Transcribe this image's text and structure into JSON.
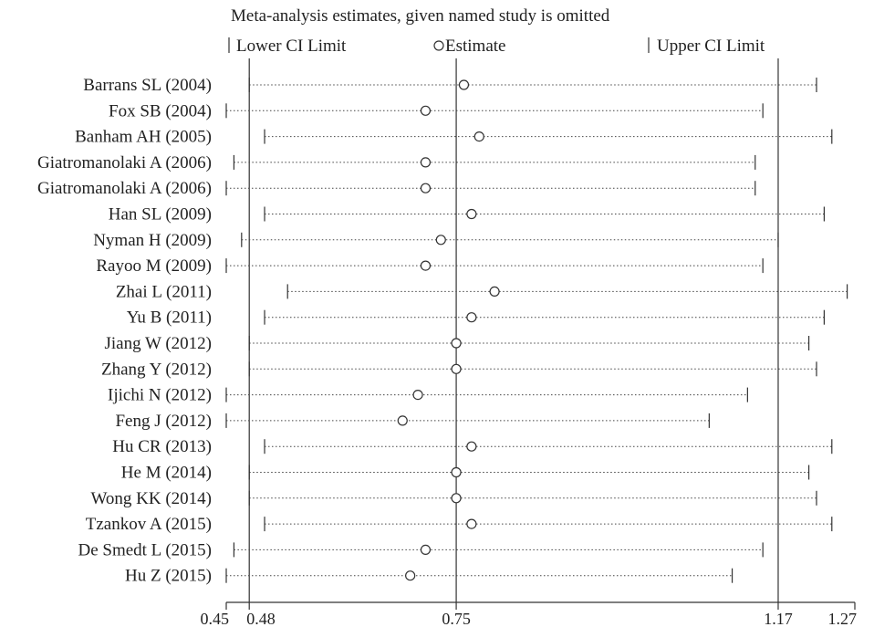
{
  "chart_data": {
    "type": "forest",
    "title": "Meta-analysis estimates, given named study is omitted",
    "legend": {
      "lower": "Lower CI Limit",
      "estimate": "Estimate",
      "upper": "Upper CI Limit"
    },
    "xlim": [
      0.45,
      1.27
    ],
    "reference_lines": [
      0.48,
      0.75,
      1.17
    ],
    "xticks": [
      {
        "value": 0.45,
        "label": "0.45"
      },
      {
        "value": 0.48,
        "label": "0.48"
      },
      {
        "value": 0.75,
        "label": "0.75"
      },
      {
        "value": 1.17,
        "label": "1.17"
      },
      {
        "value": 1.27,
        "label": "1.27"
      }
    ],
    "studies": [
      {
        "name": "Barrans SL (2004)",
        "lower": 0.48,
        "estimate": 0.76,
        "upper": 1.22
      },
      {
        "name": "Fox SB (2004)",
        "lower": 0.45,
        "estimate": 0.71,
        "upper": 1.15
      },
      {
        "name": "Banham AH (2005)",
        "lower": 0.5,
        "estimate": 0.78,
        "upper": 1.24
      },
      {
        "name": "Giatromanolaki A (2006)",
        "lower": 0.46,
        "estimate": 0.71,
        "upper": 1.14
      },
      {
        "name": "Giatromanolaki A (2006)",
        "lower": 0.45,
        "estimate": 0.71,
        "upper": 1.14
      },
      {
        "name": "Han SL (2009)",
        "lower": 0.5,
        "estimate": 0.77,
        "upper": 1.23
      },
      {
        "name": "Nyman H (2009)",
        "lower": 0.47,
        "estimate": 0.73,
        "upper": 1.17
      },
      {
        "name": "Rayoo M (2009)",
        "lower": 0.45,
        "estimate": 0.71,
        "upper": 1.15
      },
      {
        "name": "Zhai L (2011)",
        "lower": 0.53,
        "estimate": 0.8,
        "upper": 1.26
      },
      {
        "name": "Yu B (2011)",
        "lower": 0.5,
        "estimate": 0.77,
        "upper": 1.23
      },
      {
        "name": "Jiang W (2012)",
        "lower": 0.48,
        "estimate": 0.75,
        "upper": 1.21
      },
      {
        "name": "Zhang Y (2012)",
        "lower": 0.48,
        "estimate": 0.75,
        "upper": 1.22
      },
      {
        "name": "Ijichi N (2012)",
        "lower": 0.45,
        "estimate": 0.7,
        "upper": 1.13
      },
      {
        "name": "Feng J (2012)",
        "lower": 0.45,
        "estimate": 0.68,
        "upper": 1.08
      },
      {
        "name": "Hu CR (2013)",
        "lower": 0.5,
        "estimate": 0.77,
        "upper": 1.24
      },
      {
        "name": "He M (2014)",
        "lower": 0.48,
        "estimate": 0.75,
        "upper": 1.21
      },
      {
        "name": "Wong KK (2014)",
        "lower": 0.48,
        "estimate": 0.75,
        "upper": 1.22
      },
      {
        "name": "Tzankov A (2015)",
        "lower": 0.5,
        "estimate": 0.77,
        "upper": 1.24
      },
      {
        "name": "De Smedt L (2015)",
        "lower": 0.46,
        "estimate": 0.71,
        "upper": 1.15
      },
      {
        "name": "Hu Z (2015)",
        "lower": 0.45,
        "estimate": 0.69,
        "upper": 1.11
      }
    ]
  }
}
